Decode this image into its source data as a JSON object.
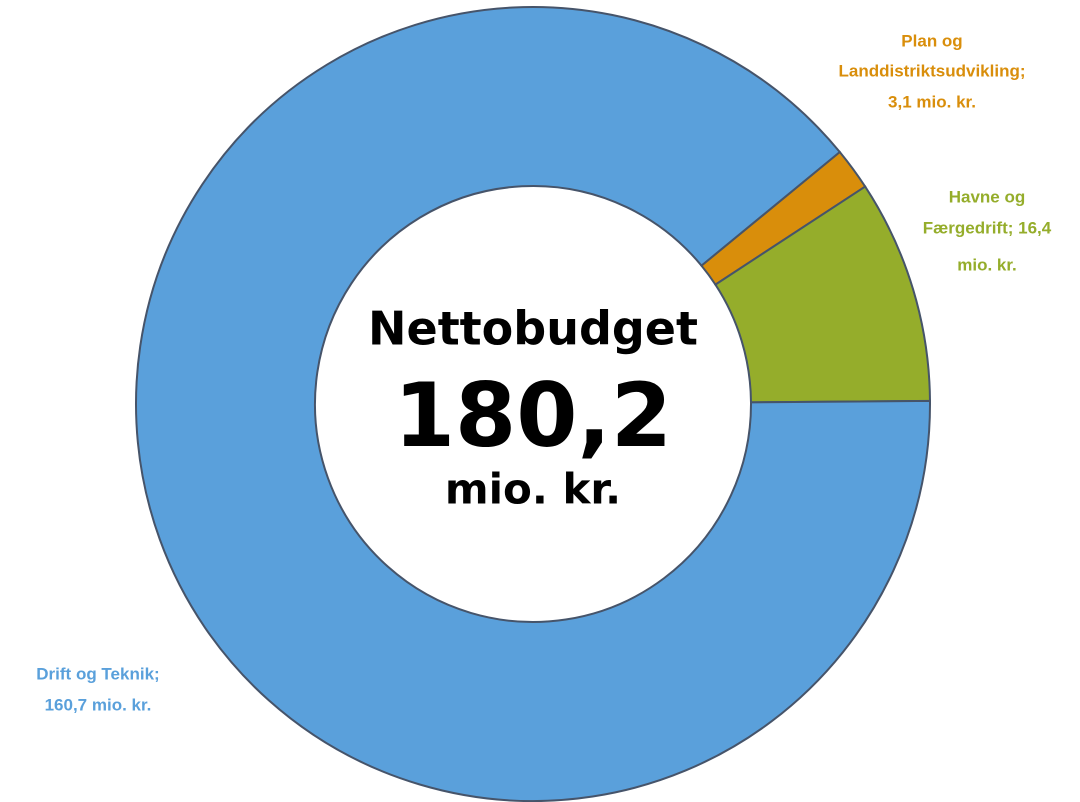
{
  "chart_data": {
    "type": "donut",
    "series": [
      {
        "name": "Plan og Landdistriktsudvikling",
        "color": "#d98e0b",
        "values": [
          3.1
        ],
        "value_labels": [
          [
            "Plan og",
            "Landdistriktsudvikling;",
            "3,1 mio. kr."
          ]
        ]
      },
      {
        "name": "Havne og Færgedrift",
        "color": "#95ad2b",
        "values": [
          16.4
        ],
        "value_labels": [
          [
            "Havne og",
            "Færgedrift; 16,4",
            "mio. kr."
          ]
        ]
      },
      {
        "name": "Drift og Teknik",
        "color": "#5aa0db",
        "values": [
          160.7
        ],
        "value_labels": [
          [
            "Drift og Teknik;",
            "160,7 mio. kr."
          ]
        ]
      }
    ],
    "annotations": [
      "Nettobudget",
      "180,2",
      "mio. kr."
    ]
  }
}
